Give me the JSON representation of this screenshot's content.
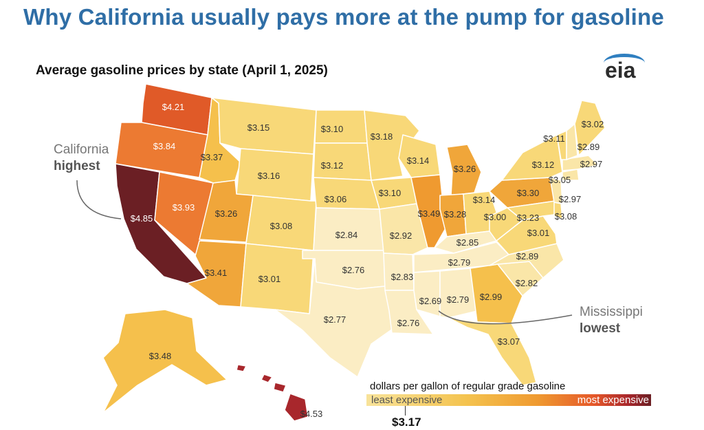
{
  "headline": "Why California usually pays more at the pump for gasoline",
  "subtitle": "Average gasoline prices by state (April 1, 2025)",
  "logo_text": "eia",
  "annotations": {
    "california": {
      "line1": "California",
      "line2": "highest"
    },
    "mississippi": {
      "line1": "Mississippi",
      "line2": "lowest"
    }
  },
  "legend": {
    "title": "dollars per gallon of regular grade gasoline",
    "least": "least expensive",
    "most": "most expensive",
    "average": "$3.17"
  },
  "colors": {
    "darkest": "#6b1f24",
    "dark_red": "#a8272c",
    "red_orange": "#e05a28",
    "orange": "#ec7a32",
    "mid_orange": "#f0a63a",
    "gold": "#f5c04c",
    "light_gold": "#f8d878",
    "pale": "#fae6a8",
    "palest": "#fbedc4",
    "headline_blue": "#2f6ea6"
  },
  "states": {
    "WA": "$4.21",
    "OR": "$3.84",
    "CA": "$4.85",
    "NV": "$3.93",
    "ID": "$3.37",
    "MT": "$3.15",
    "WY": "$3.16",
    "UT": "$3.26",
    "CO": "$3.08",
    "AZ": "$3.41",
    "NM": "$3.01",
    "ND": "$3.10",
    "SD": "$3.12",
    "NE": "$3.06",
    "KS": "$2.84",
    "OK": "$2.76",
    "TX": "$2.77",
    "MN": "$3.18",
    "IA": "$3.10",
    "MO": "$2.92",
    "AR": "$2.83",
    "LA": "$2.76",
    "WI": "$3.14",
    "IL": "$3.49",
    "MI": "$3.26",
    "IN": "$3.28",
    "OH": "$3.14",
    "KY": "$2.85",
    "TN": "$2.79",
    "MS": "$2.69",
    "AL": "$2.79",
    "GA": "$2.99",
    "FL": "$3.07",
    "SC": "$2.82",
    "NC": "$2.89",
    "VA": "$3.01",
    "WV": "$3.00",
    "PA": "$3.30",
    "MD": "$3.23",
    "DE": "$3.08",
    "NJ": "$2.97",
    "NY": "$3.12",
    "CT": "$3.05",
    "MA": "$2.97",
    "VT": "$3.11",
    "NH": "$2.89",
    "ME": "$3.02",
    "AK": "$3.48",
    "HI": "$4.53"
  }
}
